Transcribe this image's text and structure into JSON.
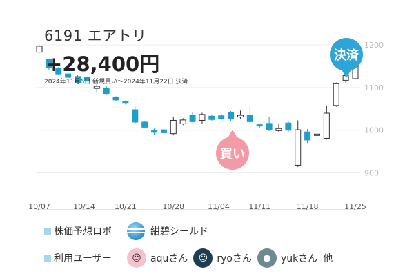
{
  "stock": {
    "code_name": "6191 エアトリ"
  },
  "result": {
    "profit": "+28,400円",
    "period": "2024年11月6日 新規買い〜2024年11月22日 決済"
  },
  "markers": {
    "buy_label": "買い",
    "sell_label": "決済"
  },
  "colors": {
    "up": "#1f9ecb",
    "down_fill": "#ffffff",
    "down_stroke": "#333333",
    "buy": "#f29aa6",
    "sell": "#2ea5d6"
  },
  "chart_data": {
    "type": "candlestick",
    "y_ticks": [
      "900",
      "1000",
      "1100",
      "1200"
    ],
    "ylim": [
      820,
      1260
    ],
    "x_tick_labels": [
      "10/07",
      "10/14",
      "10/21",
      "10/28",
      "11/04",
      "11/11",
      "11/18",
      "11/25"
    ],
    "candles": [
      {
        "d": "10/07",
        "o": 1183,
        "c": 1197,
        "h": 1199,
        "l": 1182,
        "up": false
      },
      {
        "d": "10/08",
        "o": 1166,
        "c": 1146,
        "h": 1168,
        "l": 1142,
        "up": true
      },
      {
        "d": "10/09",
        "o": 1145,
        "c": 1132,
        "h": 1148,
        "l": 1129,
        "up": true
      },
      {
        "d": "10/10",
        "o": 1132,
        "c": 1124,
        "h": 1135,
        "l": 1122,
        "up": true
      },
      {
        "d": "10/11",
        "o": 1126,
        "c": 1112,
        "h": 1130,
        "l": 1110,
        "up": true
      },
      {
        "d": "10/15",
        "o": 1124,
        "c": 1116,
        "h": 1126,
        "l": 1114,
        "up": true
      },
      {
        "d": "10/16",
        "o": 1098,
        "c": 1103,
        "h": 1111,
        "l": 1088,
        "up": false
      },
      {
        "d": "10/17",
        "o": 1099,
        "c": 1086,
        "h": 1104,
        "l": 1084,
        "up": true
      },
      {
        "d": "10/18",
        "o": 1077,
        "c": 1071,
        "h": 1080,
        "l": 1068,
        "up": true
      },
      {
        "d": "10/21",
        "o": 1067,
        "c": 1063,
        "h": 1070,
        "l": 1060,
        "up": true
      },
      {
        "d": "10/22",
        "o": 1048,
        "c": 1019,
        "h": 1055,
        "l": 1015,
        "up": true
      },
      {
        "d": "10/23",
        "o": 1019,
        "c": 1007,
        "h": 1021,
        "l": 1005,
        "up": true
      },
      {
        "d": "10/24",
        "o": 1000,
        "c": 995,
        "h": 1004,
        "l": 990,
        "up": true
      },
      {
        "d": "10/25",
        "o": 1001,
        "c": 994,
        "h": 1004,
        "l": 988,
        "up": true
      },
      {
        "d": "10/28",
        "o": 992,
        "c": 1023,
        "h": 1031,
        "l": 988,
        "up": false
      },
      {
        "d": "10/29",
        "o": 1015,
        "c": 1024,
        "h": 1028,
        "l": 1012,
        "up": false
      },
      {
        "d": "10/30",
        "o": 1035,
        "c": 1020,
        "h": 1043,
        "l": 1018,
        "up": true
      },
      {
        "d": "10/31",
        "o": 1023,
        "c": 1037,
        "h": 1041,
        "l": 1015,
        "up": false
      },
      {
        "d": "11/01",
        "o": 1033,
        "c": 1025,
        "h": 1037,
        "l": 1022,
        "up": true
      },
      {
        "d": "11/05",
        "o": 1034,
        "c": 1027,
        "h": 1038,
        "l": 1020,
        "up": true
      },
      {
        "d": "11/06",
        "o": 1042,
        "c": 1026,
        "h": 1045,
        "l": 1022,
        "up": true
      },
      {
        "d": "11/07",
        "o": 1031,
        "c": 1035,
        "h": 1046,
        "l": 1027,
        "up": false
      },
      {
        "d": "11/08",
        "o": 1035,
        "c": 1020,
        "h": 1058,
        "l": 1017,
        "up": true
      },
      {
        "d": "11/11",
        "o": 1013,
        "c": 1011,
        "h": 1016,
        "l": 1006,
        "up": true
      },
      {
        "d": "11/12",
        "o": 1016,
        "c": 1001,
        "h": 1032,
        "l": 998,
        "up": true
      },
      {
        "d": "11/13",
        "o": 999,
        "c": 1004,
        "h": 1016,
        "l": 996,
        "up": false
      },
      {
        "d": "11/14",
        "o": 1017,
        "c": 1000,
        "h": 1021,
        "l": 995,
        "up": true
      },
      {
        "d": "11/15",
        "o": 918,
        "c": 1001,
        "h": 1023,
        "l": 914,
        "up": false
      },
      {
        "d": "11/18",
        "o": 996,
        "c": 977,
        "h": 1003,
        "l": 970,
        "up": true
      },
      {
        "d": "11/19",
        "o": 988,
        "c": 991,
        "h": 1012,
        "l": 983,
        "up": false
      },
      {
        "d": "11/20",
        "o": 981,
        "c": 1040,
        "h": 1058,
        "l": 978,
        "up": false
      },
      {
        "d": "11/21",
        "o": 1058,
        "c": 1109,
        "h": 1112,
        "l": 1055,
        "up": false
      },
      {
        "d": "11/22",
        "o": 1117,
        "c": 1128,
        "h": 1140,
        "l": 1110,
        "up": false
      },
      {
        "d": "11/25",
        "o": 1121,
        "c": 1200,
        "h": 1210,
        "l": 1119,
        "up": false
      }
    ]
  },
  "legend": {
    "robo_label": "株価予想ロボ",
    "robo_name": "紺碧シールド",
    "robo_icon": "globe-icon",
    "users_label": "利用ユーザー",
    "users": [
      {
        "name": "aquさん",
        "icon": "face-icon"
      },
      {
        "name": "ryoさん",
        "icon": "face-icon"
      },
      {
        "name": "yukさん",
        "icon": "owl-icon"
      }
    ],
    "more": "他"
  }
}
